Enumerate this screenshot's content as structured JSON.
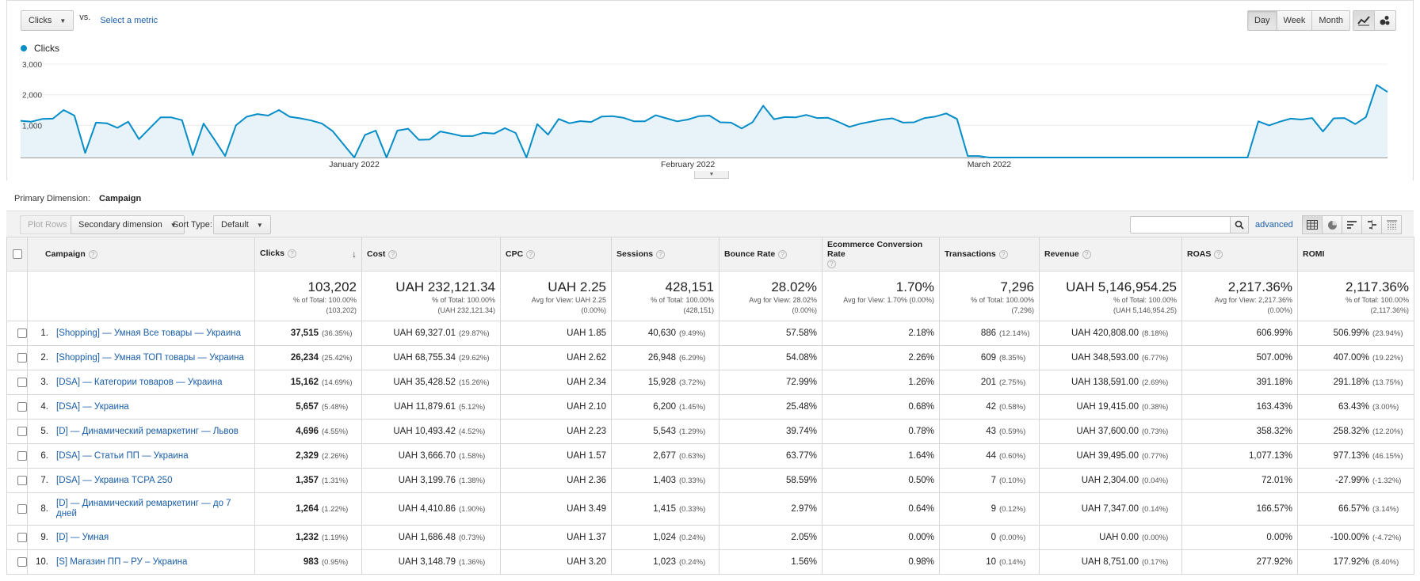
{
  "controls": {
    "metric_select": "Clicks",
    "vs_label": "vs.",
    "select_metric_link": "Select a metric",
    "periods": [
      "Day",
      "Week",
      "Month"
    ],
    "active_period": "Day"
  },
  "chart_data": {
    "type": "area",
    "series": [
      {
        "name": "Clicks",
        "color": "#058dc7",
        "values": [
          1150,
          1120,
          1210,
          1220,
          1500,
          1320,
          100,
          1090,
          1070,
          920,
          1120,
          550,
          910,
          1260,
          1260,
          1170,
          30,
          1060,
          540,
          0,
          1000,
          1280,
          1370,
          1320,
          1500,
          1280,
          1230,
          1160,
          1060,
          810,
          380,
          -50,
          690,
          830,
          -50,
          830,
          890,
          530,
          540,
          800,
          730,
          650,
          650,
          760,
          730,
          910,
          750,
          -50,
          1040,
          700,
          1210,
          1070,
          1140,
          1110,
          1290,
          1300,
          1250,
          1130,
          1130,
          1330,
          1230,
          1130,
          1190,
          1300,
          1320,
          1100,
          1090,
          900,
          1100,
          1640,
          1200,
          1270,
          1260,
          1340,
          1240,
          1250,
          1110,
          950,
          1050,
          1120,
          1190,
          1230,
          1090,
          1100,
          1240,
          1290,
          1390,
          1210,
          0,
          0,
          -50,
          -50,
          -50,
          -50,
          -50,
          -50,
          -50,
          -50,
          -50,
          -50,
          -50,
          -50,
          -50,
          -50,
          -50,
          -50,
          -50,
          -50,
          -50,
          -50,
          -50,
          -50,
          -50,
          -50,
          -50,
          1130,
          1000,
          1120,
          1220,
          1190,
          1240,
          800,
          1230,
          1240,
          1040,
          1270,
          2320,
          2090
        ]
      }
    ],
    "x_labels": [
      "January 2022",
      "February 2022",
      "March 2022"
    ],
    "y_ticks": [
      "3,000",
      "2,000",
      "1,000"
    ],
    "ylim": [
      -50,
      3000
    ]
  },
  "primary_dimension": {
    "label": "Primary Dimension:",
    "value": "Campaign"
  },
  "toolbar": {
    "plot_rows": "Plot Rows",
    "secondary_dimension": "Secondary dimension",
    "sort_type_label": "Sort Type:",
    "sort_type_value": "Default",
    "search_value": "",
    "advanced": "advanced"
  },
  "table": {
    "headers": {
      "campaign": "Campaign",
      "clicks": "Clicks",
      "cost": "Cost",
      "cpc": "CPC",
      "sessions": "Sessions",
      "bounce": "Bounce Rate",
      "ecr": "Ecommerce Conversion Rate",
      "transactions": "Transactions",
      "revenue": "Revenue",
      "roas": "ROAS",
      "romi": "ROMI"
    },
    "totals": {
      "clicks": {
        "v": "103,202",
        "s1": "% of Total: 100.00%",
        "s2": "(103,202)"
      },
      "cost": {
        "v": "UAH 232,121.34",
        "s1": "% of Total: 100.00%",
        "s2": "(UAH 232,121.34)"
      },
      "cpc": {
        "v": "UAH 2.25",
        "s1": "Avg for View: UAH 2.25",
        "s2": "(0.00%)"
      },
      "sessions": {
        "v": "428,151",
        "s1": "% of Total: 100.00%",
        "s2": "(428,151)"
      },
      "bounce": {
        "v": "28.02%",
        "s1": "Avg for View: 28.02%",
        "s2": "(0.00%)"
      },
      "ecr": {
        "v": "1.70%",
        "s1": "Avg for View: 1.70% (0.00%)",
        "s2": ""
      },
      "transactions": {
        "v": "7,296",
        "s1": "% of Total: 100.00%",
        "s2": "(7,296)"
      },
      "revenue": {
        "v": "UAH 5,146,954.25",
        "s1": "% of Total: 100.00%",
        "s2": "(UAH 5,146,954.25)"
      },
      "roas": {
        "v": "2,217.36%",
        "s1": "Avg for View: 2,217.36%",
        "s2": "(0.00%)"
      },
      "romi": {
        "v": "2,117.36%",
        "s1": "% of Total: 100.00%",
        "s2": "(2,117.36%)"
      }
    },
    "rows": [
      {
        "idx": "1.",
        "campaign": "[Shopping] — Умная Все товары — Украина",
        "clicks": "37,515",
        "clicks_pct": "(36.35%)",
        "cost": "UAH 69,327.01",
        "cost_pct": "(29.87%)",
        "cpc": "UAH 1.85",
        "sessions": "40,630",
        "sessions_pct": "(9.49%)",
        "bounce": "57.58%",
        "ecr": "2.18%",
        "transactions": "886",
        "transactions_pct": "(12.14%)",
        "revenue": "UAH 420,808.00",
        "revenue_pct": "(8.18%)",
        "roas": "606.99%",
        "romi": "506.99%",
        "romi_pct": "(23.94%)"
      },
      {
        "idx": "2.",
        "campaign": "[Shopping] — Умная ТОП товары — Украина",
        "clicks": "26,234",
        "clicks_pct": "(25.42%)",
        "cost": "UAH 68,755.34",
        "cost_pct": "(29.62%)",
        "cpc": "UAH 2.62",
        "sessions": "26,948",
        "sessions_pct": "(6.29%)",
        "bounce": "54.08%",
        "ecr": "2.26%",
        "transactions": "609",
        "transactions_pct": "(8.35%)",
        "revenue": "UAH 348,593.00",
        "revenue_pct": "(6.77%)",
        "roas": "507.00%",
        "romi": "407.00%",
        "romi_pct": "(19.22%)"
      },
      {
        "idx": "3.",
        "campaign": "[DSA] — Категории товаров — Украина",
        "clicks": "15,162",
        "clicks_pct": "(14.69%)",
        "cost": "UAH 35,428.52",
        "cost_pct": "(15.26%)",
        "cpc": "UAH 2.34",
        "sessions": "15,928",
        "sessions_pct": "(3.72%)",
        "bounce": "72.99%",
        "ecr": "1.26%",
        "transactions": "201",
        "transactions_pct": "(2.75%)",
        "revenue": "UAH 138,591.00",
        "revenue_pct": "(2.69%)",
        "roas": "391.18%",
        "romi": "291.18%",
        "romi_pct": "(13.75%)"
      },
      {
        "idx": "4.",
        "campaign": "[DSA] — Украина",
        "clicks": "5,657",
        "clicks_pct": "(5.48%)",
        "cost": "UAH 11,879.61",
        "cost_pct": "(5.12%)",
        "cpc": "UAH 2.10",
        "sessions": "6,200",
        "sessions_pct": "(1.45%)",
        "bounce": "25.48%",
        "ecr": "0.68%",
        "transactions": "42",
        "transactions_pct": "(0.58%)",
        "revenue": "UAH 19,415.00",
        "revenue_pct": "(0.38%)",
        "roas": "163.43%",
        "romi": "63.43%",
        "romi_pct": "(3.00%)"
      },
      {
        "idx": "5.",
        "campaign": "[D] — Динамический ремаркетинг — Львов",
        "clicks": "4,696",
        "clicks_pct": "(4.55%)",
        "cost": "UAH 10,493.42",
        "cost_pct": "(4.52%)",
        "cpc": "UAH 2.23",
        "sessions": "5,543",
        "sessions_pct": "(1.29%)",
        "bounce": "39.74%",
        "ecr": "0.78%",
        "transactions": "43",
        "transactions_pct": "(0.59%)",
        "revenue": "UAH 37,600.00",
        "revenue_pct": "(0.73%)",
        "roas": "358.32%",
        "romi": "258.32%",
        "romi_pct": "(12.20%)"
      },
      {
        "idx": "6.",
        "campaign": "[DSA] — Статьи ПП — Украина",
        "clicks": "2,329",
        "clicks_pct": "(2.26%)",
        "cost": "UAH 3,666.70",
        "cost_pct": "(1.58%)",
        "cpc": "UAH 1.57",
        "sessions": "2,677",
        "sessions_pct": "(0.63%)",
        "bounce": "63.77%",
        "ecr": "1.64%",
        "transactions": "44",
        "transactions_pct": "(0.60%)",
        "revenue": "UAH 39,495.00",
        "revenue_pct": "(0.77%)",
        "roas": "1,077.13%",
        "romi": "977.13%",
        "romi_pct": "(46.15%)"
      },
      {
        "idx": "7.",
        "campaign": "[DSA] — Украина TCPA 250",
        "clicks": "1,357",
        "clicks_pct": "(1.31%)",
        "cost": "UAH 3,199.76",
        "cost_pct": "(1.38%)",
        "cpc": "UAH 2.36",
        "sessions": "1,403",
        "sessions_pct": "(0.33%)",
        "bounce": "58.59%",
        "ecr": "0.50%",
        "transactions": "7",
        "transactions_pct": "(0.10%)",
        "revenue": "UAH 2,304.00",
        "revenue_pct": "(0.04%)",
        "roas": "72.01%",
        "romi": "-27.99%",
        "romi_pct": "(-1.32%)"
      },
      {
        "idx": "8.",
        "campaign": "[D] — Динамический ремаркетинг — до 7 дней",
        "clicks": "1,264",
        "clicks_pct": "(1.22%)",
        "cost": "UAH 4,410.86",
        "cost_pct": "(1.90%)",
        "cpc": "UAH 3.49",
        "sessions": "1,415",
        "sessions_pct": "(0.33%)",
        "bounce": "2.97%",
        "ecr": "0.64%",
        "transactions": "9",
        "transactions_pct": "(0.12%)",
        "revenue": "UAH 7,347.00",
        "revenue_pct": "(0.14%)",
        "roas": "166.57%",
        "romi": "66.57%",
        "romi_pct": "(3.14%)"
      },
      {
        "idx": "9.",
        "campaign": "[D] — Умная",
        "clicks": "1,232",
        "clicks_pct": "(1.19%)",
        "cost": "UAH 1,686.48",
        "cost_pct": "(0.73%)",
        "cpc": "UAH 1.37",
        "sessions": "1,024",
        "sessions_pct": "(0.24%)",
        "bounce": "2.05%",
        "ecr": "0.00%",
        "transactions": "0",
        "transactions_pct": "(0.00%)",
        "revenue": "UAH 0.00",
        "revenue_pct": "(0.00%)",
        "roas": "0.00%",
        "romi": "-100.00%",
        "romi_pct": "(-4.72%)"
      },
      {
        "idx": "10.",
        "campaign": "[S] Магазин ПП – РУ – Украина",
        "clicks": "983",
        "clicks_pct": "(0.95%)",
        "cost": "UAH 3,148.79",
        "cost_pct": "(1.36%)",
        "cpc": "UAH 3.20",
        "sessions": "1,023",
        "sessions_pct": "(0.24%)",
        "bounce": "1.56%",
        "ecr": "0.98%",
        "transactions": "10",
        "transactions_pct": "(0.14%)",
        "revenue": "UAH 8,751.00",
        "revenue_pct": "(0.17%)",
        "roas": "277.92%",
        "romi": "177.92%",
        "romi_pct": "(8.40%)"
      }
    ]
  }
}
